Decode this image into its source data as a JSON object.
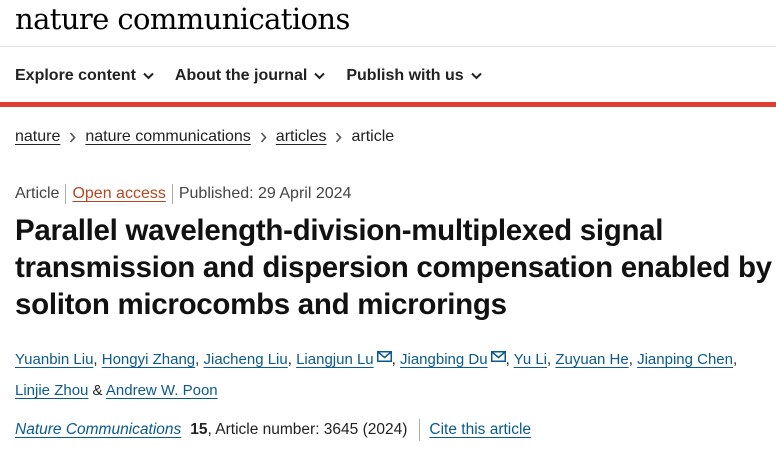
{
  "site": {
    "logo": "nature communications"
  },
  "nav": {
    "items": [
      {
        "label": "Explore content",
        "icon": "chevron-down-icon"
      },
      {
        "label": "About the journal",
        "icon": "chevron-down-icon"
      },
      {
        "label": "Publish with us",
        "icon": "chevron-down-icon"
      }
    ]
  },
  "breadcrumb": {
    "items": [
      "nature",
      "nature communications",
      "articles"
    ],
    "current": "article"
  },
  "meta": {
    "type": "Article",
    "access": "Open access",
    "published": "Published: 29 April 2024"
  },
  "article": {
    "title_lines": [
      "Parallel wavelength-division-multiplexed signal",
      "transmission and dispersion compensation enabled by",
      "soliton microcombs and microrings"
    ]
  },
  "authors": [
    {
      "name": "Yuanbin Liu",
      "sep": ", "
    },
    {
      "name": "Hongyi Zhang",
      "sep": ", "
    },
    {
      "name": "Jiacheng Liu",
      "sep": ", "
    },
    {
      "name": "Liangjun Lu",
      "sep": ", ",
      "mail": true
    },
    {
      "name": "Jiangbing Du",
      "sep": ", ",
      "mail": true
    },
    {
      "name": "Yu Li",
      "sep": ", "
    },
    {
      "name": "Zuyuan He",
      "sep": ", "
    },
    {
      "name": "Jianping Chen",
      "sep": ", "
    },
    {
      "name": "Linjie Zhou",
      "sep": " & "
    },
    {
      "name": "Andrew W. Poon",
      "sep": ""
    }
  ],
  "citation": {
    "journal": "Nature Communications",
    "volume": "15",
    "article_number": ", Article number: 3645 (2024)",
    "cite_label": "Cite this article"
  },
  "colors": {
    "accent_red": "#e03c2f",
    "link_blue": "#0a5a8c",
    "open_access_orange": "#b5461f"
  }
}
